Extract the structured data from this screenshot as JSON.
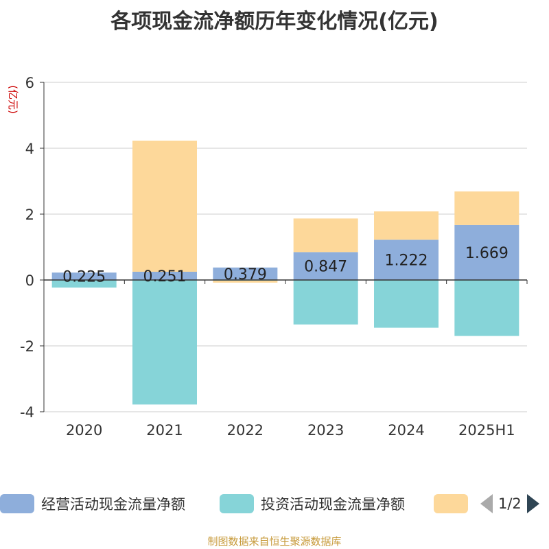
{
  "chart_data": {
    "type": "bar",
    "stacked": true,
    "title": "各项现金流净额历年变化情况(亿元)",
    "ylabel": "(亿元)",
    "categories": [
      "2020",
      "2021",
      "2022",
      "2023",
      "2024",
      "2025H1"
    ],
    "ylim": [
      -4,
      6
    ],
    "yticks": [
      -4,
      -2,
      0,
      2,
      4,
      6
    ],
    "grid": true,
    "legend_position": "bottom",
    "series": [
      {
        "name": "经营活动现金流量净额",
        "color": "#8eaedb",
        "values": [
          0.225,
          0.251,
          0.379,
          0.847,
          1.222,
          1.669
        ],
        "show_labels": true
      },
      {
        "name": "投资活动现金流量净额",
        "color": "#86d4d8",
        "values": [
          -0.23,
          -3.78,
          -0.02,
          -1.35,
          -1.45,
          -1.7
        ],
        "show_labels": false
      },
      {
        "name": "",
        "color": "#fdd89a",
        "values": [
          0.0,
          3.98,
          -0.06,
          1.02,
          0.86,
          1.02
        ],
        "show_labels": false
      }
    ]
  },
  "legend": {
    "pager": "1/2"
  },
  "source": "制图数据来自恒生聚源数据库"
}
